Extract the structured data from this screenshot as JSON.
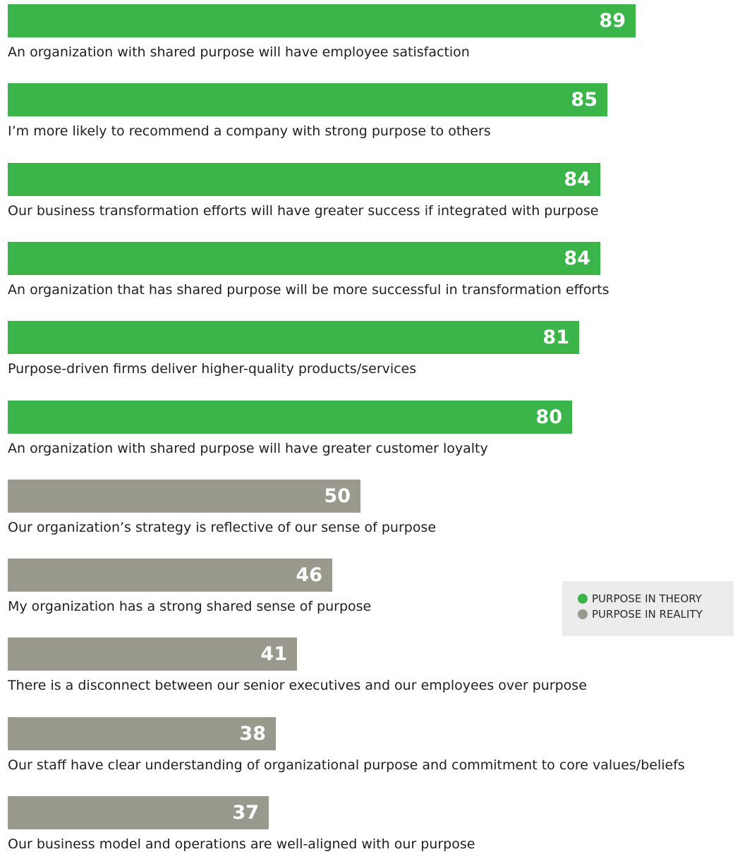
{
  "colors": {
    "theory": "#3bb54a",
    "reality": "#9a998d",
    "value_text": "#ffffff"
  },
  "chart_data": {
    "type": "bar",
    "orientation": "horizontal",
    "title": "",
    "xlabel": "",
    "ylabel": "",
    "xlim": [
      0,
      100
    ],
    "grid": false,
    "legend_position": "bottom-right",
    "series": [
      {
        "name": "PURPOSE IN THEORY",
        "color": "#3bb54a"
      },
      {
        "name": "PURPOSE IN REALITY",
        "color": "#9a998d"
      }
    ],
    "bars": [
      {
        "label": "An organization with shared purpose will have employee satisfaction",
        "value": 89,
        "series": "PURPOSE IN THEORY"
      },
      {
        "label": "I’m more likely to recommend a company with strong purpose to others",
        "value": 85,
        "series": "PURPOSE IN THEORY"
      },
      {
        "label": "Our business transformation efforts will have greater success if integrated with purpose",
        "value": 84,
        "series": "PURPOSE IN THEORY"
      },
      {
        "label": "An organization that has shared purpose will be more successful in transformation efforts",
        "value": 84,
        "series": "PURPOSE IN THEORY"
      },
      {
        "label": "Purpose-driven firms deliver higher-quality products/services",
        "value": 81,
        "series": "PURPOSE IN THEORY"
      },
      {
        "label": "An organization with shared purpose will have greater customer loyalty",
        "value": 80,
        "series": "PURPOSE IN THEORY"
      },
      {
        "label": "Our organization’s strategy is reflective of our sense of purpose",
        "value": 50,
        "series": "PURPOSE IN REALITY"
      },
      {
        "label": "My organization has a strong shared sense of purpose",
        "value": 46,
        "series": "PURPOSE IN REALITY"
      },
      {
        "label": "There is a disconnect between our senior executives and our employees over purpose",
        "value": 41,
        "series": "PURPOSE IN REALITY"
      },
      {
        "label": "Our staff have clear understanding of organizational purpose and commitment to core values/beliefs",
        "value": 38,
        "series": "PURPOSE IN REALITY"
      },
      {
        "label": "Our business model and operations are well-aligned with our purpose",
        "value": 37,
        "series": "PURPOSE IN REALITY"
      }
    ]
  }
}
